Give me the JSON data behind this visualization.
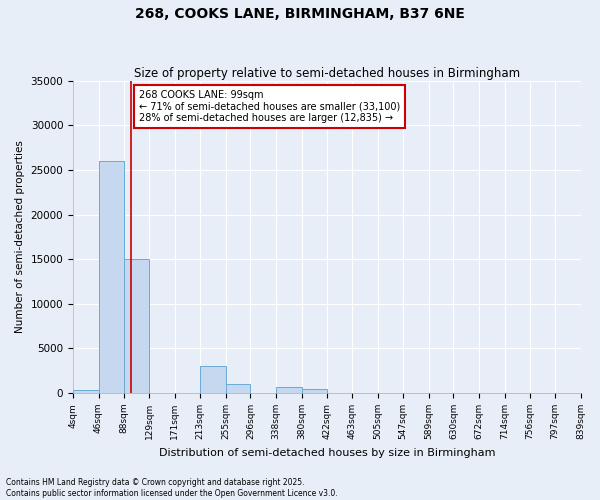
{
  "title": "268, COOKS LANE, BIRMINGHAM, B37 6NE",
  "subtitle": "Size of property relative to semi-detached houses in Birmingham",
  "xlabel": "Distribution of semi-detached houses by size in Birmingham",
  "ylabel": "Number of semi-detached properties",
  "bin_edges": [
    4,
    46,
    88,
    129,
    171,
    213,
    255,
    296,
    338,
    380,
    422,
    463,
    505,
    547,
    589,
    630,
    672,
    714,
    756,
    797,
    839
  ],
  "bin_counts": [
    300,
    26000,
    15000,
    0,
    0,
    3000,
    1000,
    0,
    700,
    500,
    0,
    0,
    0,
    0,
    0,
    0,
    0,
    0,
    0,
    0
  ],
  "property_size": 99,
  "property_label": "268 COOKS LANE: 99sqm",
  "pct_smaller": 71,
  "count_smaller": 33100,
  "pct_larger": 28,
  "count_larger": 12835,
  "bar_color": "#c5d8f0",
  "bar_edge_color": "#6aaad4",
  "vline_color": "#cc0000",
  "annotation_box_color": "#cc0000",
  "ylim": [
    0,
    35000
  ],
  "yticks": [
    0,
    5000,
    10000,
    15000,
    20000,
    25000,
    30000,
    35000
  ],
  "background_color": "#e8eef8",
  "grid_color": "#ffffff",
  "footer": "Contains HM Land Registry data © Crown copyright and database right 2025.\nContains public sector information licensed under the Open Government Licence v3.0."
}
